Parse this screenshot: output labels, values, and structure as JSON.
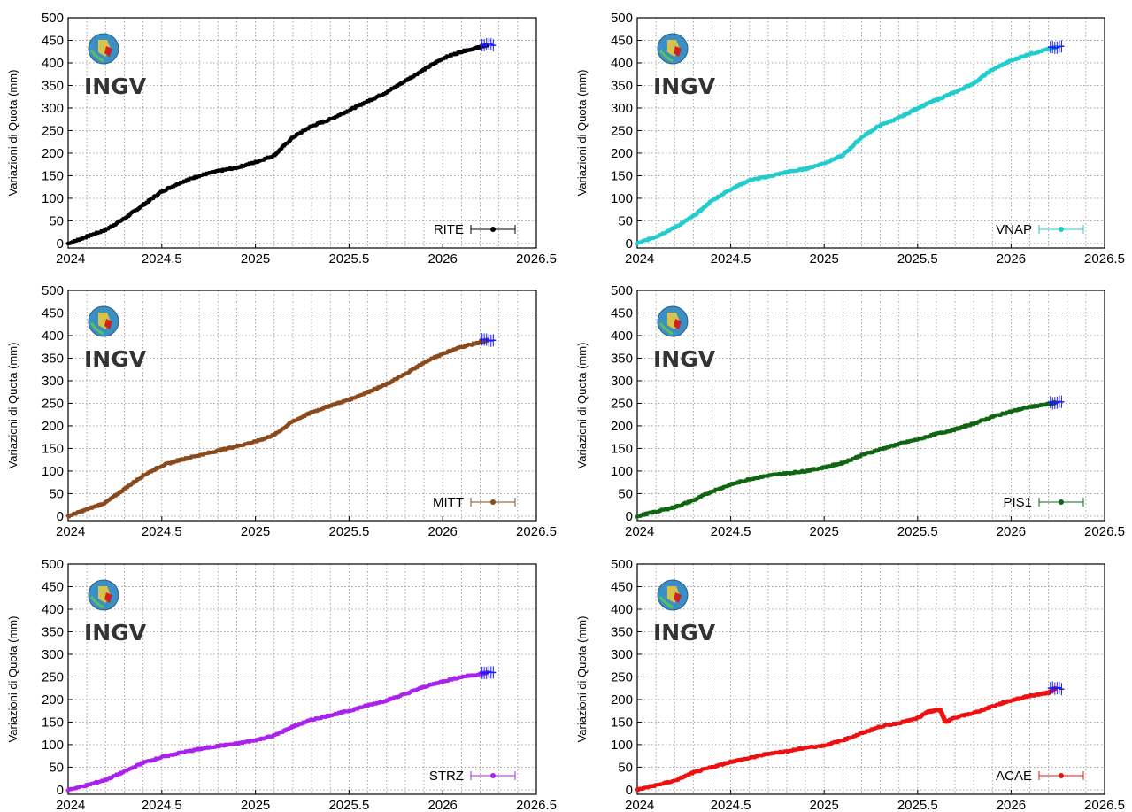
{
  "y_axis_label": "Variazioni di Quota (mm)",
  "logo_text": "INGV",
  "x_ticks": [
    "2024",
    "2024.5",
    "2025",
    "2025.5",
    "2026",
    "2026.5"
  ],
  "y_ticks": [
    "0",
    "50",
    "100",
    "150",
    "200",
    "250",
    "300",
    "350",
    "400",
    "450",
    "500"
  ],
  "recent_marker_color": "#1a1aff",
  "chart_data": [
    {
      "type": "scatter",
      "station": "RITE",
      "color": "#000000",
      "ylabel": "Variazioni di Quota (mm)",
      "xlim": [
        2024,
        2026.5
      ],
      "ylim": [
        -10,
        500
      ],
      "x": [
        2024.0,
        2024.1,
        2024.2,
        2024.3,
        2024.4,
        2024.5,
        2024.6,
        2024.7,
        2024.8,
        2024.9,
        2025.0,
        2025.1,
        2025.2,
        2025.3,
        2025.4,
        2025.5,
        2025.6,
        2025.7,
        2025.8,
        2025.9,
        2026.0,
        2026.1,
        2026.2,
        2026.24
      ],
      "y": [
        0,
        15,
        30,
        55,
        85,
        115,
        135,
        150,
        160,
        168,
        180,
        195,
        235,
        260,
        275,
        295,
        315,
        335,
        360,
        385,
        410,
        425,
        435,
        440
      ],
      "recent": {
        "x": 2026.24,
        "y": 440
      }
    },
    {
      "type": "scatter",
      "station": "VNAP",
      "color": "#22cccc",
      "ylabel": "Variazioni di Quota (mm)",
      "xlim": [
        2024,
        2026.5
      ],
      "ylim": [
        -10,
        500
      ],
      "x": [
        2024.0,
        2024.1,
        2024.2,
        2024.3,
        2024.4,
        2024.5,
        2024.6,
        2024.7,
        2024.8,
        2024.9,
        2025.0,
        2025.1,
        2025.2,
        2025.3,
        2025.4,
        2025.5,
        2025.6,
        2025.7,
        2025.8,
        2025.9,
        2026.0,
        2026.1,
        2026.2,
        2026.24
      ],
      "y": [
        0,
        15,
        35,
        60,
        95,
        120,
        140,
        148,
        158,
        165,
        178,
        195,
        235,
        262,
        278,
        300,
        318,
        335,
        355,
        385,
        405,
        420,
        430,
        435
      ],
      "recent": {
        "x": 2026.24,
        "y": 435
      }
    },
    {
      "type": "scatter",
      "station": "MITT",
      "color": "#8b4a1c",
      "ylabel": "Variazioni di Quota (mm)",
      "xlim": [
        2024,
        2026.5
      ],
      "ylim": [
        -10,
        500
      ],
      "x": [
        2024.0,
        2024.1,
        2024.2,
        2024.3,
        2024.4,
        2024.5,
        2024.6,
        2024.7,
        2024.8,
        2024.9,
        2025.0,
        2025.1,
        2025.2,
        2025.3,
        2025.4,
        2025.5,
        2025.6,
        2025.7,
        2025.8,
        2025.9,
        2026.0,
        2026.1,
        2026.2,
        2026.24
      ],
      "y": [
        0,
        15,
        30,
        60,
        90,
        112,
        125,
        135,
        145,
        155,
        165,
        180,
        210,
        230,
        245,
        258,
        275,
        292,
        315,
        340,
        360,
        375,
        385,
        390
      ],
      "recent": {
        "x": 2026.24,
        "y": 390
      }
    },
    {
      "type": "scatter",
      "station": "PIS1",
      "color": "#116611",
      "ylabel": "Variazioni di Quota (mm)",
      "xlim": [
        2024,
        2026.5
      ],
      "ylim": [
        -10,
        500
      ],
      "x": [
        2024.0,
        2024.1,
        2024.2,
        2024.3,
        2024.4,
        2024.5,
        2024.6,
        2024.7,
        2024.8,
        2024.9,
        2025.0,
        2025.1,
        2025.2,
        2025.3,
        2025.4,
        2025.5,
        2025.6,
        2025.7,
        2025.8,
        2025.9,
        2026.0,
        2026.1,
        2026.2,
        2026.24
      ],
      "y": [
        0,
        10,
        20,
        35,
        55,
        70,
        82,
        90,
        95,
        100,
        108,
        118,
        135,
        148,
        160,
        170,
        182,
        192,
        205,
        220,
        232,
        242,
        248,
        252
      ],
      "recent": {
        "x": 2026.24,
        "y": 252
      }
    },
    {
      "type": "scatter",
      "station": "STRZ",
      "color": "#aa22ee",
      "ylabel": "Variazioni di Quota (mm)",
      "xlim": [
        2024,
        2026.5
      ],
      "ylim": [
        -10,
        500
      ],
      "x": [
        2024.0,
        2024.1,
        2024.2,
        2024.3,
        2024.4,
        2024.5,
        2024.6,
        2024.7,
        2024.8,
        2024.9,
        2025.0,
        2025.1,
        2025.2,
        2025.3,
        2025.4,
        2025.5,
        2025.6,
        2025.7,
        2025.8,
        2025.9,
        2026.0,
        2026.1,
        2026.2,
        2026.24
      ],
      "y": [
        0,
        10,
        22,
        40,
        60,
        72,
        82,
        90,
        97,
        102,
        110,
        120,
        140,
        155,
        165,
        175,
        187,
        198,
        212,
        228,
        240,
        250,
        256,
        260
      ],
      "recent": {
        "x": 2026.24,
        "y": 260
      }
    },
    {
      "type": "scatter",
      "station": "ACAE",
      "color": "#ee1111",
      "ylabel": "Variazioni di Quota (mm)",
      "xlim": [
        2024,
        2026.5
      ],
      "ylim": [
        -10,
        500
      ],
      "x": [
        2024.0,
        2024.1,
        2024.2,
        2024.3,
        2024.4,
        2024.5,
        2024.6,
        2024.7,
        2024.8,
        2024.9,
        2025.0,
        2025.1,
        2025.2,
        2025.3,
        2025.4,
        2025.5,
        2025.55,
        2025.62,
        2025.65,
        2025.7,
        2025.8,
        2025.9,
        2026.0,
        2026.1,
        2026.2,
        2026.24
      ],
      "y": [
        0,
        10,
        20,
        38,
        50,
        62,
        70,
        80,
        85,
        93,
        98,
        110,
        125,
        140,
        148,
        158,
        172,
        178,
        150,
        160,
        170,
        185,
        198,
        208,
        215,
        225
      ],
      "recent": {
        "x": 2026.24,
        "y": 225
      }
    }
  ]
}
